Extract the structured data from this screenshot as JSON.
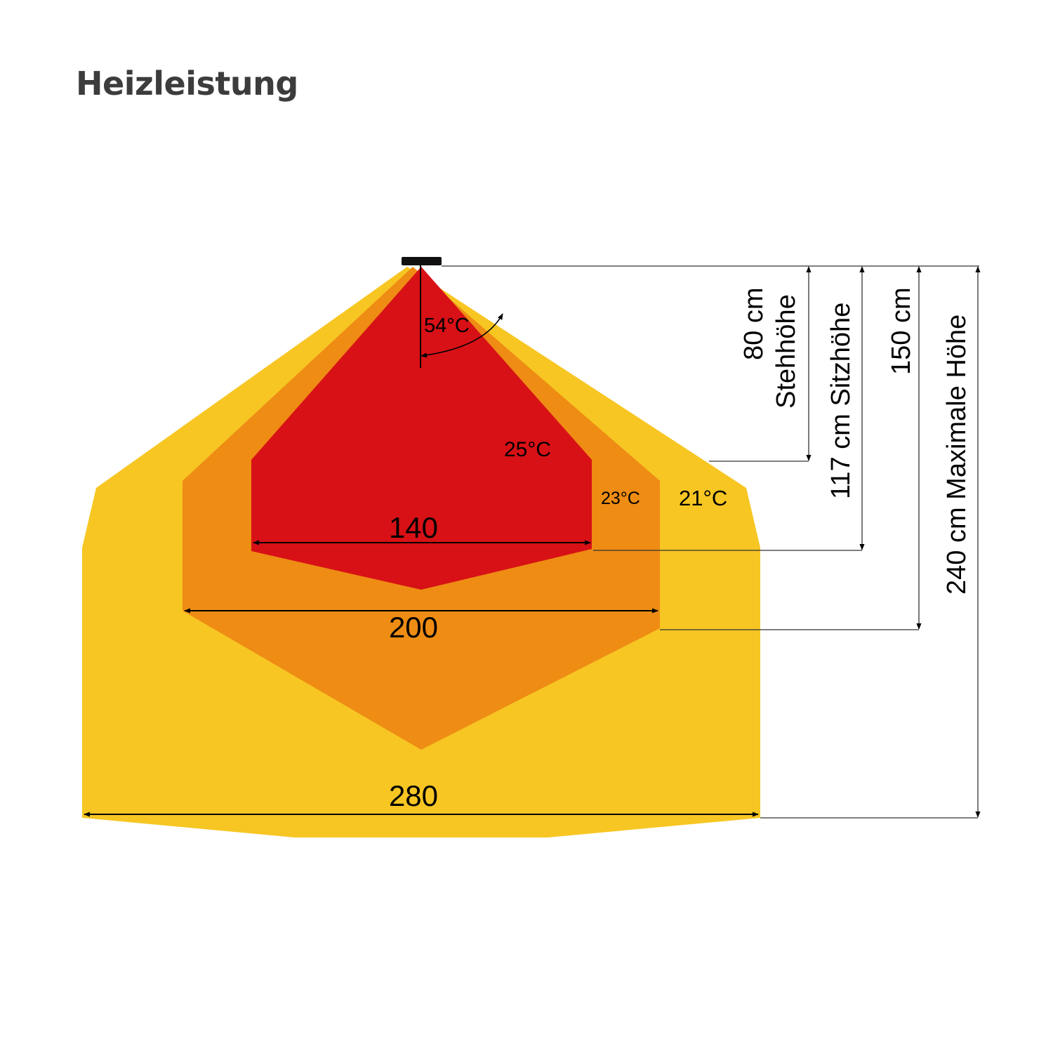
{
  "title": "Heizleistung",
  "colors": {
    "zone_hot": "#d81116",
    "zone_mid": "#ee8c14",
    "zone_outer": "#f7c623",
    "heater": "#111111",
    "line": "#333333"
  },
  "angle": {
    "label": "54°C"
  },
  "zones": [
    {
      "temp": "25°C",
      "width_label": "140"
    },
    {
      "temp": "23°C",
      "width_label": "200"
    },
    {
      "temp": "21°C",
      "width_label": "280"
    }
  ],
  "heights": [
    {
      "line1": "80 cm",
      "line2": "Stehhöhe"
    },
    {
      "line1": "117 cm Sitzhöhe"
    },
    {
      "line1": "150 cm"
    },
    {
      "line1": "240 cm Maximale Höhe"
    }
  ]
}
